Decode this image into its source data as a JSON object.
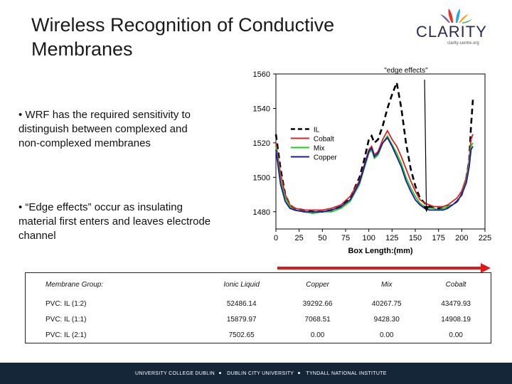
{
  "slide": {
    "title_line1": "Wireless Recognition of Conductive",
    "title_line2": "Membranes",
    "bullet1": "• WRF has the required sensitivity to distinguish between complexed and non-complexed membranes",
    "bullet2": "• “Edge effects” occur as insulating material first enters and leaves electrode channel"
  },
  "logo": {
    "name": "CLARITY",
    "sub": "clarity-centre.org",
    "icon": "flame-petals-icon",
    "colors": [
      "#e7332a",
      "#2aa6df",
      "#f5a623",
      "#7b5aa6",
      "#39b54a"
    ]
  },
  "chart_data": {
    "type": "line",
    "xlabel": "Box Length:(mm)",
    "xlim": [
      0,
      225
    ],
    "ylim": [
      1470,
      1560
    ],
    "x_ticks": [
      "0",
      "25",
      "50",
      "75",
      "100",
      "125",
      "150",
      "175",
      "200",
      "225"
    ],
    "y_ticks": [
      "1480",
      "1500",
      "1520",
      "1540",
      "1560"
    ],
    "annotation": "\"edge effects\"",
    "legend_placement": "center",
    "series": [
      {
        "name": "IL",
        "color": "#000000",
        "dash": true,
        "x": [
          0,
          5,
          10,
          15,
          20,
          30,
          40,
          50,
          60,
          70,
          80,
          90,
          95,
          100,
          103,
          106,
          110,
          115,
          120,
          125,
          130,
          135,
          140,
          145,
          150,
          155,
          160,
          165,
          170,
          175,
          180,
          185,
          190,
          195,
          200,
          205,
          208,
          210,
          212
        ],
        "y": [
          1525,
          1505,
          1490,
          1484,
          1482,
          1481,
          1480,
          1480,
          1481,
          1483,
          1488,
          1500,
          1510,
          1522,
          1524,
          1520,
          1522,
          1530,
          1540,
          1548,
          1555,
          1540,
          1520,
          1505,
          1495,
          1488,
          1485,
          1483,
          1482,
          1482,
          1482,
          1483,
          1484,
          1486,
          1490,
          1500,
          1510,
          1530,
          1545
        ]
      },
      {
        "name": "Cobalt",
        "color": "#e02020",
        "dash": false,
        "x": [
          0,
          5,
          10,
          15,
          20,
          30,
          40,
          50,
          60,
          70,
          80,
          90,
          95,
          100,
          103,
          106,
          110,
          115,
          120,
          125,
          130,
          135,
          140,
          145,
          150,
          155,
          160,
          165,
          170,
          175,
          180,
          185,
          190,
          195,
          200,
          205,
          208,
          210,
          212
        ],
        "y": [
          1520,
          1502,
          1490,
          1484,
          1482,
          1481,
          1481,
          1481,
          1482,
          1484,
          1489,
          1498,
          1507,
          1516,
          1518,
          1513,
          1515,
          1522,
          1527,
          1522,
          1518,
          1512,
          1505,
          1498,
          1492,
          1487,
          1485,
          1484,
          1483,
          1483,
          1483,
          1484,
          1486,
          1488,
          1492,
          1500,
          1510,
          1522,
          1525
        ]
      },
      {
        "name": "Mix",
        "color": "#22cc22",
        "dash": false,
        "x": [
          0,
          5,
          10,
          15,
          20,
          30,
          40,
          50,
          60,
          70,
          80,
          90,
          95,
          100,
          103,
          106,
          110,
          115,
          120,
          125,
          130,
          135,
          140,
          145,
          150,
          155,
          160,
          165,
          170,
          175,
          180,
          185,
          190,
          195,
          200,
          205,
          208,
          210,
          212
        ],
        "y": [
          1518,
          1498,
          1488,
          1483,
          1481,
          1480,
          1479,
          1480,
          1480,
          1482,
          1486,
          1496,
          1505,
          1514,
          1516,
          1511,
          1513,
          1520,
          1524,
          1519,
          1514,
          1508,
          1500,
          1494,
          1489,
          1485,
          1483,
          1482,
          1482,
          1481,
          1482,
          1483,
          1484,
          1486,
          1490,
          1498,
          1508,
          1518,
          1520
        ]
      },
      {
        "name": "Copper",
        "color": "#1a1aa8",
        "dash": false,
        "x": [
          0,
          5,
          10,
          15,
          20,
          30,
          40,
          50,
          60,
          70,
          80,
          90,
          95,
          100,
          103,
          106,
          110,
          115,
          120,
          125,
          130,
          135,
          140,
          145,
          150,
          155,
          160,
          165,
          170,
          175,
          180,
          185,
          190,
          195,
          200,
          205,
          208,
          210,
          212
        ],
        "y": [
          1516,
          1496,
          1486,
          1482,
          1481,
          1480,
          1480,
          1480,
          1481,
          1483,
          1487,
          1497,
          1506,
          1515,
          1517,
          1512,
          1514,
          1520,
          1523,
          1518,
          1512,
          1506,
          1498,
          1492,
          1487,
          1484,
          1482,
          1481,
          1481,
          1481,
          1481,
          1482,
          1484,
          1486,
          1490,
          1497,
          1506,
          1516,
          1518
        ]
      }
    ]
  },
  "table": {
    "headers": [
      "Membrane Group:",
      "Ionic Liquid",
      "Copper",
      "Mix",
      "Cobalt"
    ],
    "rows": [
      [
        "PVC: IL (1:2)",
        "52486.14",
        "39292.66",
        "40267.75",
        "43479.93"
      ],
      [
        "PVC: IL (1:1)",
        "15879.97",
        "7068.51",
        "9428.30",
        "14908.19"
      ],
      [
        "PVC: IL (2:1)",
        "7502.65",
        "0.00",
        "0.00",
        "0.00"
      ]
    ]
  },
  "footer": {
    "item1": "UNIVERSITY COLLEGE DUBLIN",
    "item2": "DUBLIN CITY UNIVERSITY",
    "item3": "TYNDALL NATIONAL INSTITUTE"
  }
}
